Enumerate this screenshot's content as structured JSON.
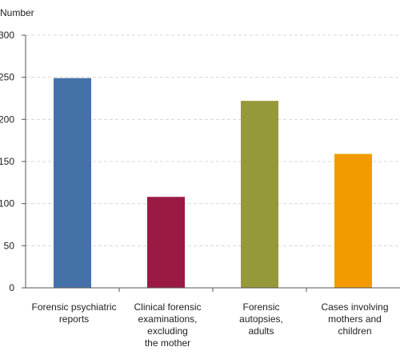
{
  "chart_data": {
    "type": "bar",
    "ylabel": "Number",
    "xlabel": "",
    "ylim": [
      0,
      300
    ],
    "yticks": [
      "0",
      "50",
      "100",
      "150",
      "200",
      "250",
      "300"
    ],
    "categories": [
      [
        "Forensic psychiatric",
        "reports"
      ],
      [
        "Clinical forensic",
        "examinations,",
        "excluding",
        "the mother"
      ],
      [
        "Forensic",
        "autopsies,",
        "adults"
      ],
      [
        "Cases involving",
        "mothers and",
        "children"
      ]
    ],
    "values": [
      249,
      108,
      222,
      159
    ],
    "colors": [
      "#4472a8",
      "#9b1a43",
      "#96993a",
      "#f39a00"
    ],
    "grid": true,
    "legend": "none"
  }
}
